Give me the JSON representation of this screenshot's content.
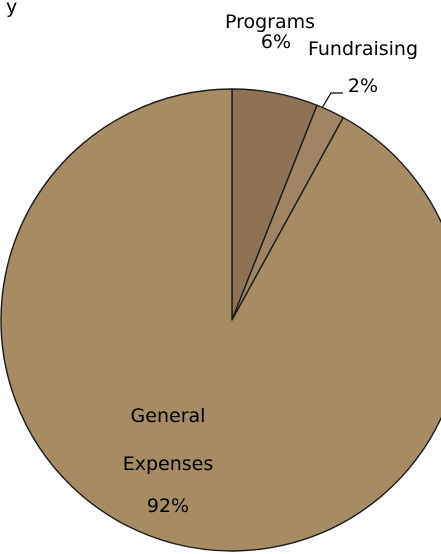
{
  "chart_data": {
    "type": "pie",
    "title": "",
    "clipped_title_fragment": "y",
    "slices": [
      {
        "name": "Programs",
        "value": 6,
        "value_label": "6%",
        "color": "#8f7253"
      },
      {
        "name": "Fundraising",
        "value": 2,
        "value_label": "2%",
        "color": "#a08463"
      },
      {
        "name": "General Expenses",
        "name_lines": [
          "General",
          "Expenses"
        ],
        "value": 92,
        "value_label": "92%",
        "color": "#a68b64"
      }
    ],
    "start_angle": "12 o'clock",
    "direction": "clockwise",
    "legend": "none"
  }
}
